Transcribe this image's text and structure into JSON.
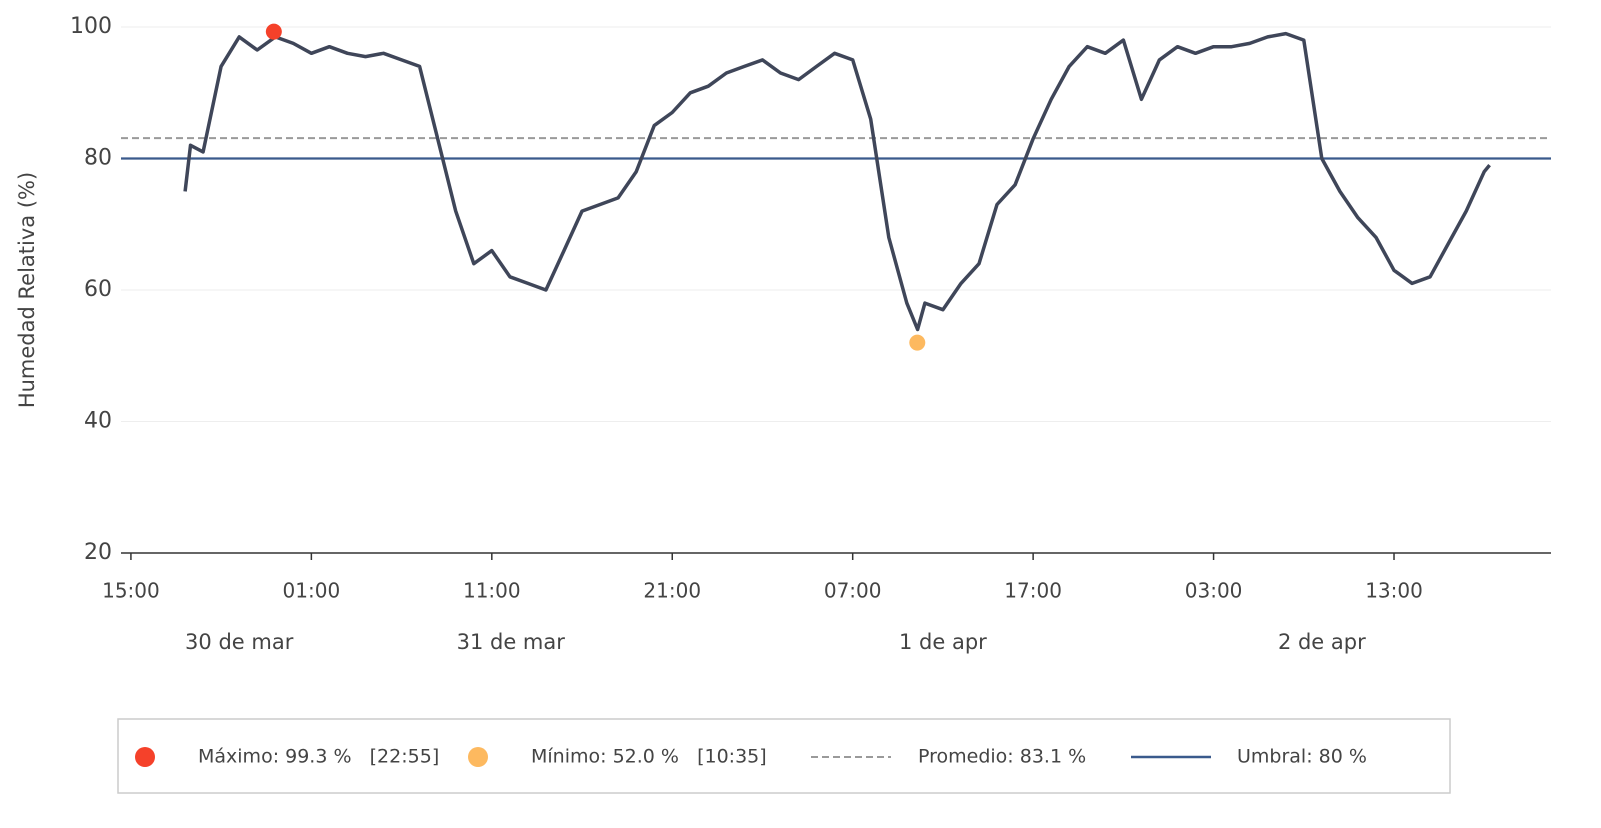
{
  "chart_data": {
    "type": "line",
    "y_label": "Humedad Relativa (%)",
    "x": [
      18,
      18.3,
      19,
      20,
      21,
      22,
      23,
      24,
      25,
      26,
      27,
      28,
      29,
      30,
      31,
      32,
      33,
      34,
      35,
      36,
      37,
      38,
      39,
      40,
      41,
      42,
      43,
      44,
      45,
      46,
      47,
      48,
      49,
      50,
      51,
      52,
      53,
      54,
      55,
      56,
      57,
      58,
      58.6,
      59,
      60,
      61,
      62,
      63,
      64,
      65,
      66,
      67,
      68,
      69,
      70,
      71,
      72,
      73,
      74,
      75,
      76,
      77,
      78,
      79,
      80,
      81,
      82,
      83,
      84,
      85,
      86,
      87,
      88,
      89,
      90,
      90.3
    ],
    "values": [
      75,
      82,
      81,
      94,
      98.5,
      96.5,
      98.5,
      97.5,
      96,
      97,
      96,
      95.5,
      96,
      95,
      94,
      83,
      72,
      64,
      66,
      62,
      61,
      60,
      66,
      72,
      73,
      74,
      78,
      85,
      87,
      90,
      91,
      93,
      94,
      95,
      93,
      92,
      94,
      96,
      95,
      86,
      68,
      58,
      54,
      58,
      57,
      61,
      64,
      73,
      76,
      83,
      89,
      94,
      97,
      96,
      98,
      89,
      95,
      97,
      96,
      97,
      97,
      97.5,
      98.5,
      99,
      98,
      80,
      75,
      71,
      68,
      63,
      61,
      62,
      67,
      72,
      78,
      79
    ],
    "color": "#3f4659",
    "xlim": [
      14.45,
      93.7
    ],
    "xticks": [
      {
        "value": 15,
        "label": "15:00"
      },
      {
        "value": 25,
        "label": "01:00"
      },
      {
        "value": 35,
        "label": "11:00"
      },
      {
        "value": 45,
        "label": "21:00"
      },
      {
        "value": 55,
        "label": "07:00"
      },
      {
        "value": 65,
        "label": "17:00"
      },
      {
        "value": 75,
        "label": "03:00"
      },
      {
        "value": 85,
        "label": "13:00"
      }
    ],
    "date_labels": [
      {
        "value": 21,
        "label": "30 de mar"
      },
      {
        "value": 36.05,
        "label": "31 de mar"
      },
      {
        "value": 60,
        "label": "1 de apr"
      },
      {
        "value": 81,
        "label": "2 de apr"
      }
    ],
    "ylim": [
      20,
      100
    ],
    "yticks": [
      20,
      40,
      60,
      80,
      100
    ],
    "grid": true,
    "max_point": {
      "x": 22.92,
      "y": 99.3,
      "color": "#f5412a"
    },
    "min_point": {
      "x": 58.58,
      "y": 52.0,
      "color": "#fdb95f"
    },
    "mean": 83.1,
    "mean_color": "#9a9a9a",
    "threshold": 80,
    "threshold_color": "#3a5a8c",
    "legend": [
      "Máximo: 99.3 %   [22:55]",
      "Mínimo: 52.0 %   [10:35]",
      "Promedio: 83.1 %",
      "Umbral: 80 %"
    ]
  }
}
